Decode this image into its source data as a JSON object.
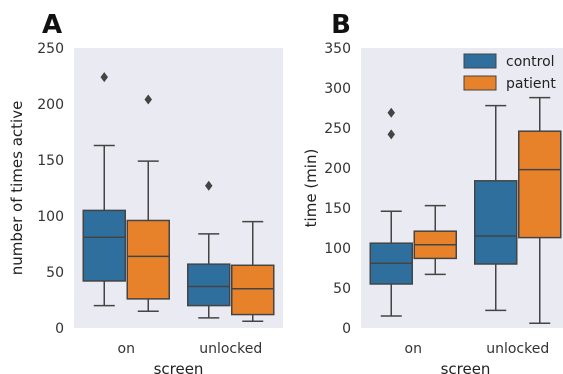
{
  "chart_data": [
    {
      "type": "box",
      "panel_label": "A",
      "title": "",
      "xlabel": "screen",
      "ylabel": "number of times active",
      "categories": [
        "on",
        "unlocked"
      ],
      "ylim": [
        0,
        250
      ],
      "yticks": [
        0,
        50,
        100,
        150,
        200,
        250
      ],
      "grid": false,
      "series": [
        {
          "name": "control",
          "color": "#2e6f9e",
          "boxes": [
            {
              "whislo": 20,
              "q1": 42,
              "med": 81,
              "q3": 105,
              "whishi": 163,
              "fliers": [
                224
              ]
            },
            {
              "whislo": 9,
              "q1": 20,
              "med": 37,
              "q3": 57,
              "whishi": 84,
              "fliers": [
                127
              ]
            }
          ]
        },
        {
          "name": "patient",
          "color": "#e8822a",
          "boxes": [
            {
              "whislo": 15,
              "q1": 26,
              "med": 64,
              "q3": 96,
              "whishi": 149,
              "fliers": [
                204
              ]
            },
            {
              "whislo": 6,
              "q1": 12,
              "med": 35,
              "q3": 56,
              "whishi": 95,
              "fliers": []
            }
          ]
        }
      ]
    },
    {
      "type": "box",
      "panel_label": "B",
      "title": "",
      "xlabel": "screen",
      "ylabel": "time (min)",
      "categories": [
        "on",
        "unlocked"
      ],
      "ylim": [
        0,
        350
      ],
      "yticks": [
        0,
        50,
        100,
        150,
        200,
        250,
        300,
        350
      ],
      "grid": false,
      "legend": {
        "position": "top-right",
        "entries": [
          "control",
          "patient"
        ]
      },
      "series": [
        {
          "name": "control",
          "color": "#2e6f9e",
          "boxes": [
            {
              "whislo": 15,
              "q1": 55,
              "med": 81,
              "q3": 106,
              "whishi": 146,
              "fliers": [
                242,
                269
              ]
            },
            {
              "whislo": 22,
              "q1": 80,
              "med": 115,
              "q3": 184,
              "whishi": 278,
              "fliers": []
            }
          ]
        },
        {
          "name": "patient",
          "color": "#e8822a",
          "boxes": [
            {
              "whislo": 67,
              "q1": 87,
              "med": 104,
              "q3": 121,
              "whishi": 153,
              "fliers": []
            },
            {
              "whislo": 6,
              "q1": 113,
              "med": 198,
              "q3": 246,
              "whishi": 288,
              "fliers": []
            }
          ]
        }
      ]
    }
  ]
}
